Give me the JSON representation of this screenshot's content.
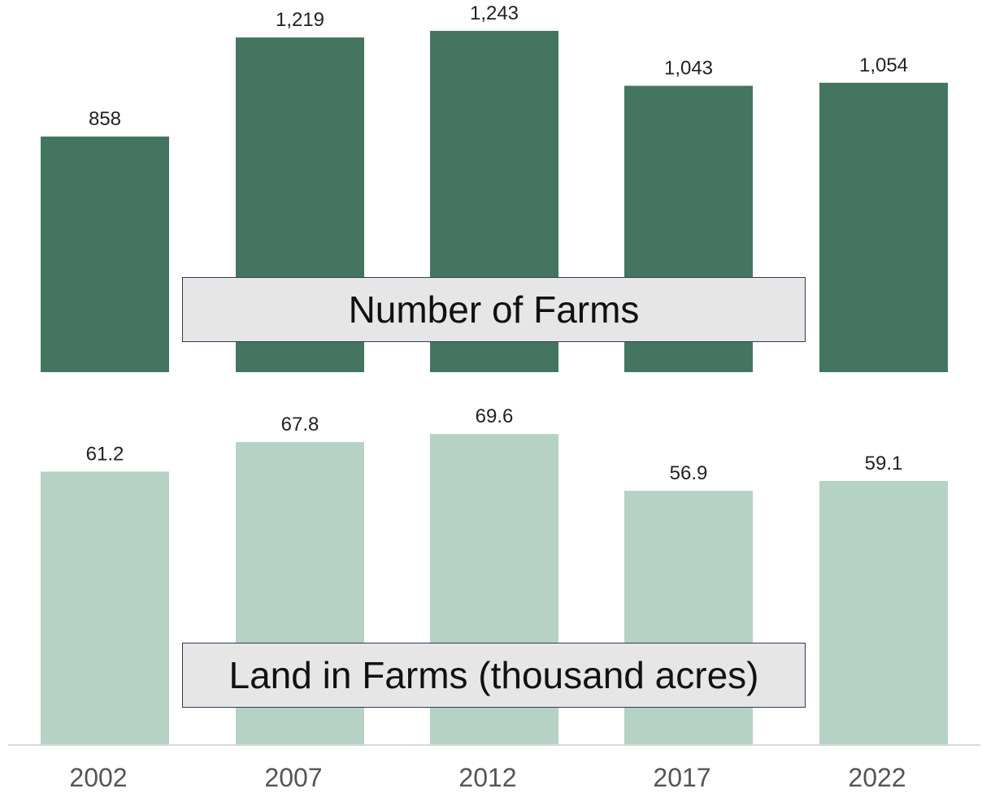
{
  "chart_data": [
    {
      "type": "bar",
      "title": "Number of Farms",
      "categories": [
        "2002",
        "2007",
        "2012",
        "2017",
        "2022"
      ],
      "values": [
        858,
        1219,
        1243,
        1043,
        1054
      ],
      "value_labels": [
        "858",
        "1,219",
        "1,243",
        "1,043",
        "1,054"
      ],
      "color": "#437561",
      "grid": false
    },
    {
      "type": "bar",
      "title": "Land in Farms (thousand acres)",
      "categories": [
        "2002",
        "2007",
        "2012",
        "2017",
        "2022"
      ],
      "values": [
        61.2,
        67.8,
        69.6,
        56.9,
        59.1
      ],
      "value_labels": [
        "61.2",
        "67.8",
        "69.6",
        "56.9",
        "59.1"
      ],
      "color": "#b5d2c4",
      "grid": false
    }
  ],
  "x_ticks": [
    "2002",
    "2007",
    "2012",
    "2017",
    "2022"
  ]
}
